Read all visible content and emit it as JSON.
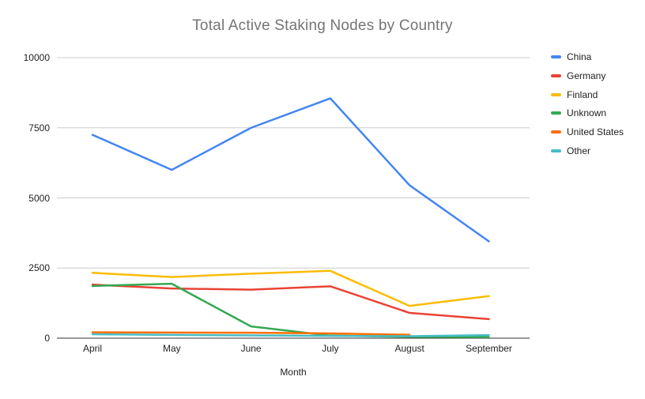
{
  "chart_data": {
    "type": "line",
    "title": "Total Active Staking Nodes by Country",
    "xlabel": "Month",
    "ylabel": "",
    "categories": [
      "April",
      "May",
      "June",
      "July",
      "August",
      "September"
    ],
    "series": [
      {
        "name": "China",
        "color": "#4285F4",
        "values": [
          7250,
          6000,
          7500,
          8550,
          5450,
          3450
        ]
      },
      {
        "name": "Germany",
        "color": "#EA4335",
        "values": [
          1910,
          1770,
          1730,
          1850,
          900,
          680
        ]
      },
      {
        "name": "Finland",
        "color": "#FBBC04",
        "values": [
          2330,
          2180,
          2300,
          2400,
          1150,
          1500
        ]
      },
      {
        "name": "Unknown",
        "color": "#34A853",
        "values": [
          1860,
          1940,
          420,
          90,
          50,
          40
        ]
      },
      {
        "name": "United States",
        "color": "#FF6D01",
        "values": [
          210,
          200,
          195,
          170,
          120,
          null
        ]
      },
      {
        "name": "Other",
        "color": "#46BDC6",
        "values": [
          140,
          115,
          100,
          80,
          70,
          110
        ]
      }
    ],
    "y_ticks": [
      0,
      2500,
      5000,
      7500,
      10000
    ],
    "ylim": [
      0,
      10000
    ],
    "grid": true,
    "legend_position": "right"
  },
  "style": {
    "gridline_color": "#cccccc",
    "axis_line_color": "#333333",
    "title_color": "#757575",
    "label_color": "#222222",
    "background": "#ffffff"
  }
}
